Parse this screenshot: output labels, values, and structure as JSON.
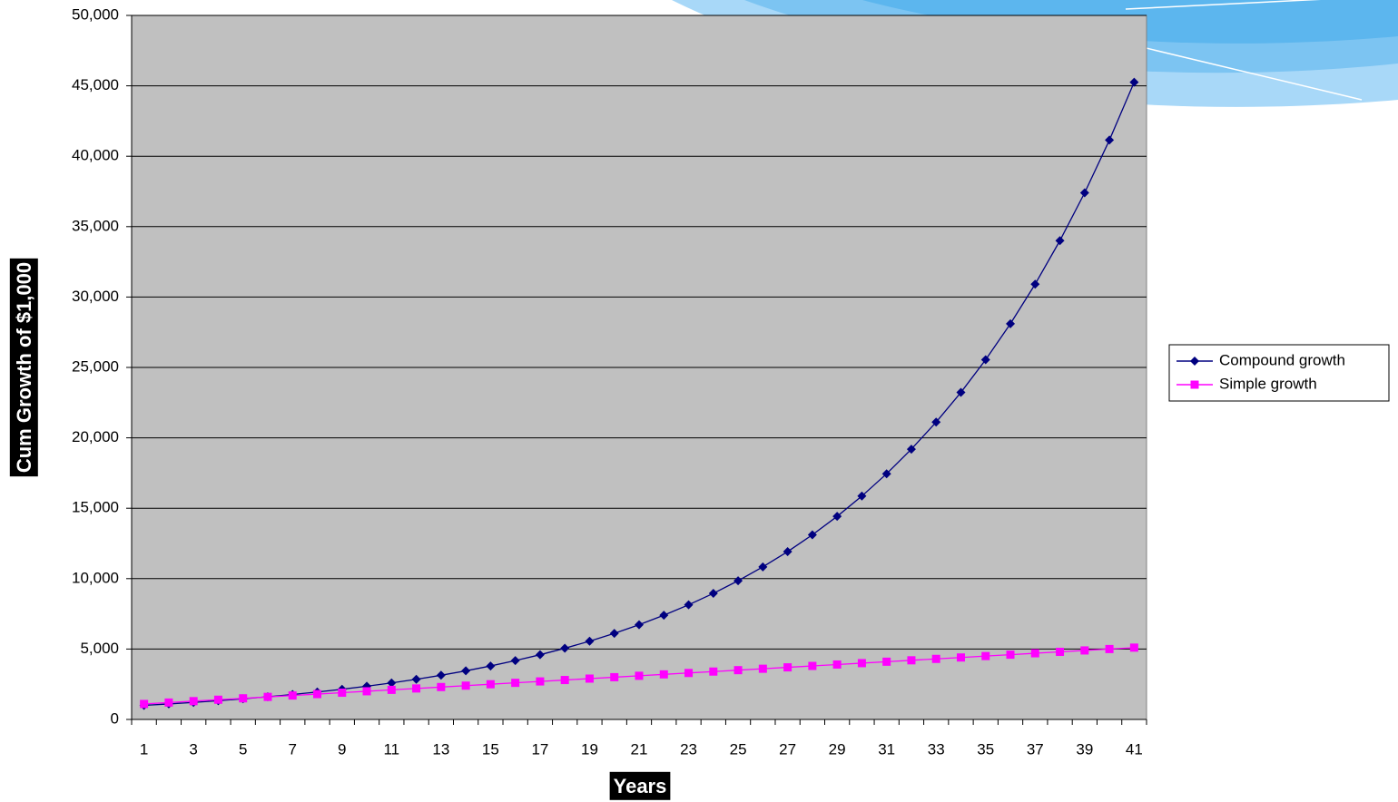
{
  "chart_data": {
    "type": "line",
    "x_label": "Years",
    "y_label": "Cum Growth of $1,000",
    "categories": [
      1,
      null,
      3,
      null,
      5,
      null,
      7,
      null,
      9,
      null,
      11,
      null,
      13,
      null,
      15,
      null,
      17,
      null,
      19,
      null,
      21,
      null,
      23,
      null,
      25,
      null,
      27,
      null,
      29,
      null,
      31,
      null,
      33,
      null,
      35,
      null,
      37,
      null,
      39,
      null,
      41
    ],
    "series": [
      {
        "name": "Compound growth",
        "color": "#000080",
        "marker": "diamond",
        "values": [
          1000,
          1100,
          1210,
          1331,
          1464,
          1611,
          1772,
          1949,
          2144,
          2358,
          2594,
          2853,
          3138,
          3452,
          3797,
          4177,
          4595,
          5054,
          5560,
          6116,
          6727,
          7400,
          8140,
          8954,
          9850,
          10835,
          11918,
          13110,
          14421,
          15863,
          17449,
          19194,
          21114,
          23225,
          25548,
          28102,
          30913,
          34004,
          37404,
          41145,
          45259
        ]
      },
      {
        "name": "Simple growth",
        "color": "#ff00ff",
        "marker": "square",
        "values": [
          1100,
          1200,
          1300,
          1400,
          1500,
          1600,
          1700,
          1800,
          1900,
          2000,
          2100,
          2200,
          2300,
          2400,
          2500,
          2600,
          2700,
          2800,
          2900,
          3000,
          3100,
          3200,
          3300,
          3400,
          3500,
          3600,
          3700,
          3800,
          3900,
          4000,
          4100,
          4200,
          4300,
          4400,
          4500,
          4600,
          4700,
          4800,
          4900,
          5000,
          5100
        ]
      }
    ],
    "ylim": [
      0,
      50000
    ],
    "yticks": [
      0,
      {
        "value": 5000,
        "label": "5,000"
      },
      {
        "value": 10000,
        "label": "10,000"
      },
      {
        "value": 15000,
        "label": "15,000"
      },
      {
        "value": 20000,
        "label": "20,000"
      },
      {
        "value": 25000,
        "label": "25,000"
      },
      {
        "value": 30000,
        "label": "30,000"
      },
      {
        "value": 35000,
        "label": "35,000"
      },
      {
        "value": 40000,
        "label": "40,000"
      },
      {
        "value": 45000,
        "label": "45,000"
      },
      {
        "value": 50000,
        "label": "50,000"
      }
    ],
    "grid": true,
    "plot_background": "#c0c0c0",
    "legend_position": "right"
  }
}
